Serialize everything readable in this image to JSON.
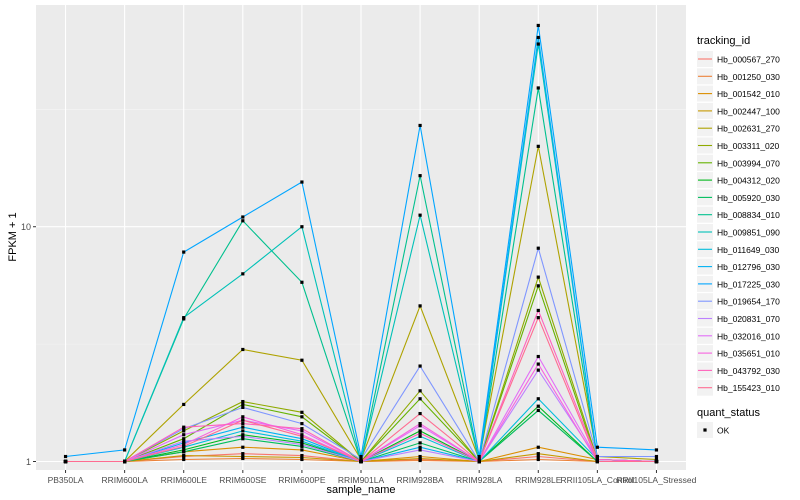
{
  "chart_data": {
    "type": "line",
    "ylabel": "FPKM + 1",
    "xlabel": "sample_name",
    "y_scale": "log10",
    "ylim": [
      0.92,
      88
    ],
    "y_ticks": [
      {
        "value": 1,
        "label": "1"
      },
      {
        "value": 10,
        "label": "10"
      }
    ],
    "categories": [
      "PB350LA",
      "RRIM600LA",
      "RRIM600LE",
      "RRIM600SE",
      "RRIM600PE",
      "RRIM901LA",
      "RRIM928BA",
      "RRIM928LA",
      "RRIM928LE",
      "RRII105LA_Control",
      "RRII105LA_Stressed"
    ],
    "grid": true,
    "legend_position": "right",
    "legend": {
      "title": "tracking_id",
      "quant_title": "quant_status",
      "quant_items": [
        "OK"
      ]
    },
    "series": [
      {
        "name": "Hb_000567_270",
        "color": "#F8766D",
        "values": [
          1.0,
          1.0,
          1.05,
          1.08,
          1.06,
          1.0,
          1.02,
          1.0,
          1.05,
          1.0,
          1.0
        ]
      },
      {
        "name": "Hb_001250_030",
        "color": "#EC8239",
        "values": [
          1.0,
          1.0,
          1.02,
          1.03,
          1.02,
          1.0,
          1.01,
          1.0,
          1.02,
          1.0,
          1.0
        ]
      },
      {
        "name": "Hb_001542_010",
        "color": "#DB8E00",
        "values": [
          1.0,
          1.0,
          1.1,
          1.15,
          1.12,
          1.0,
          1.05,
          1.0,
          1.15,
          1.02,
          1.0
        ]
      },
      {
        "name": "Hb_002447_100",
        "color": "#C79800",
        "values": [
          1.0,
          1.0,
          1.06,
          1.05,
          1.04,
          1.0,
          1.03,
          1.0,
          1.08,
          1.0,
          1.0
        ]
      },
      {
        "name": "Hb_002631_270",
        "color": "#AEA200",
        "values": [
          1.0,
          1.0,
          1.75,
          3.0,
          2.7,
          1.02,
          4.6,
          1.02,
          22.0,
          1.05,
          1.02
        ]
      },
      {
        "name": "Hb_003311_020",
        "color": "#8FAA00",
        "values": [
          1.0,
          1.0,
          1.35,
          1.8,
          1.62,
          1.0,
          2.0,
          1.0,
          6.1,
          1.02,
          1.0
        ]
      },
      {
        "name": "Hb_003994_070",
        "color": "#64B200",
        "values": [
          1.0,
          1.0,
          1.25,
          1.75,
          1.55,
          1.0,
          1.85,
          1.0,
          5.6,
          1.0,
          1.0
        ]
      },
      {
        "name": "Hb_004312_020",
        "color": "#00B81B",
        "values": [
          1.0,
          1.0,
          1.12,
          1.3,
          1.2,
          1.0,
          1.35,
          1.0,
          1.72,
          1.0,
          1.0
        ]
      },
      {
        "name": "Hb_005920_030",
        "color": "#00BD5C",
        "values": [
          1.0,
          1.0,
          1.1,
          1.25,
          1.16,
          1.0,
          1.2,
          1.0,
          1.65,
          1.0,
          1.0
        ]
      },
      {
        "name": "Hb_008834_010",
        "color": "#00C08E",
        "values": [
          1.0,
          1.0,
          4.05,
          10.6,
          5.8,
          1.0,
          16.5,
          1.0,
          39.0,
          1.02,
          1.0
        ]
      },
      {
        "name": "Hb_009851_090",
        "color": "#00C1B7",
        "values": [
          1.0,
          1.0,
          4.1,
          6.3,
          10.0,
          1.0,
          11.2,
          1.0,
          60.0,
          1.02,
          1.0
        ]
      },
      {
        "name": "Hb_011649_030",
        "color": "#00BDDC",
        "values": [
          1.0,
          1.0,
          1.15,
          1.35,
          1.22,
          1.0,
          1.28,
          1.0,
          1.85,
          1.02,
          1.0
        ]
      },
      {
        "name": "Hb_012796_030",
        "color": "#00B2F3",
        "values": [
          1.0,
          1.0,
          1.2,
          1.4,
          1.25,
          1.0,
          1.15,
          1.0,
          64.0,
          1.02,
          1.0
        ]
      },
      {
        "name": "Hb_017225_030",
        "color": "#00A5FF",
        "values": [
          1.05,
          1.12,
          7.8,
          11.0,
          15.5,
          1.05,
          27.0,
          1.05,
          72.0,
          1.15,
          1.12
        ]
      },
      {
        "name": "Hb_019654_170",
        "color": "#7F96FF",
        "values": [
          1.0,
          1.0,
          1.38,
          1.7,
          1.45,
          1.02,
          2.55,
          1.0,
          8.1,
          1.05,
          1.05
        ]
      },
      {
        "name": "Hb_020831_070",
        "color": "#BC81FF",
        "values": [
          1.0,
          1.0,
          1.22,
          1.28,
          1.18,
          1.0,
          1.12,
          1.0,
          2.45,
          1.02,
          1.0
        ]
      },
      {
        "name": "Hb_032016_010",
        "color": "#E26EF7",
        "values": [
          1.0,
          1.0,
          1.3,
          1.5,
          1.35,
          1.0,
          1.42,
          1.0,
          2.8,
          1.02,
          1.0
        ]
      },
      {
        "name": "Hb_035651_010",
        "color": "#F863DF",
        "values": [
          1.0,
          1.0,
          1.18,
          1.55,
          1.3,
          1.0,
          1.45,
          1.0,
          2.6,
          1.0,
          1.0
        ]
      },
      {
        "name": "Hb_043792_030",
        "color": "#FF62BC",
        "values": [
          1.0,
          1.0,
          1.4,
          1.45,
          1.38,
          1.0,
          1.32,
          1.0,
          4.4,
          1.02,
          1.0
        ]
      },
      {
        "name": "Hb_155423_010",
        "color": "#FF6C91",
        "values": [
          1.0,
          1.0,
          1.16,
          1.5,
          1.28,
          1.0,
          1.6,
          1.0,
          4.1,
          1.0,
          1.0
        ]
      }
    ]
  }
}
